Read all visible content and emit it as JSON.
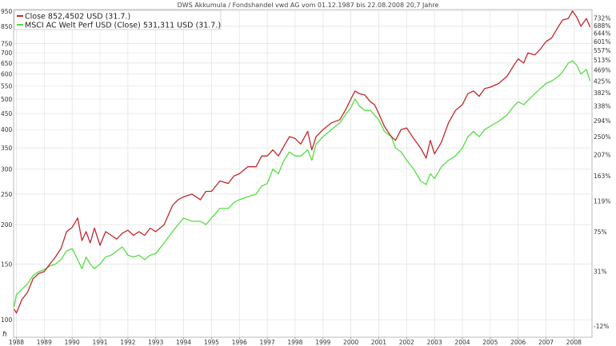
{
  "chart_data": {
    "type": "line",
    "title": "DWS Akkumula / Fondshandel vwd AG vom 01.12.1987 bis 22.08.2008 20,7 Jahre",
    "y_scale": "log",
    "xlim": [
      1987.9,
      2008.65
    ],
    "ylim": [
      88,
      960
    ],
    "x_ticks": [
      "1988",
      "1989",
      "1990",
      "1991",
      "1992",
      "1993",
      "1994",
      "1995",
      "1996",
      "1997",
      "1998",
      "1999",
      "2000",
      "2001",
      "2002",
      "2003",
      "2004",
      "2005",
      "2006",
      "2007",
      "2008"
    ],
    "y_ticks_left": [
      {
        "label": "100",
        "value": 100
      },
      {
        "label": "150",
        "value": 150
      },
      {
        "label": "200",
        "value": 200
      },
      {
        "label": "250",
        "value": 250
      },
      {
        "label": "300",
        "value": 300
      },
      {
        "label": "350",
        "value": 350
      },
      {
        "label": "400",
        "value": 400
      },
      {
        "label": "450",
        "value": 450
      },
      {
        "label": "500",
        "value": 500
      },
      {
        "label": "550",
        "value": 550
      },
      {
        "label": "600",
        "value": 600
      },
      {
        "label": "650",
        "value": 650
      },
      {
        "label": "700",
        "value": 700
      },
      {
        "label": "750",
        "value": 750
      },
      {
        "label": "850",
        "value": 850
      },
      {
        "label": "950",
        "value": 950
      }
    ],
    "y_ticks_right": [
      {
        "label": "-12%",
        "value": -12
      },
      {
        "label": "31%",
        "value": 31
      },
      {
        "label": "75%",
        "value": 75
      },
      {
        "label": "119%",
        "value": 119
      },
      {
        "label": "163%",
        "value": 163
      },
      {
        "label": "207%",
        "value": 207
      },
      {
        "label": "250%",
        "value": 250
      },
      {
        "label": "294%",
        "value": 294
      },
      {
        "label": "338%",
        "value": 338
      },
      {
        "label": "382%",
        "value": 382
      },
      {
        "label": "425%",
        "value": 425
      },
      {
        "label": "469%",
        "value": 469
      },
      {
        "label": "513%",
        "value": 513
      },
      {
        "label": "557%",
        "value": 557
      },
      {
        "label": "601%",
        "value": 601
      },
      {
        "label": "644%",
        "value": 644
      },
      {
        "label": "688%",
        "value": 688
      },
      {
        "label": "732%",
        "value": 732
      }
    ],
    "grid": true,
    "legend_position": "top-left",
    "series": [
      {
        "name": "Close 852,4502 USD (31.7.)",
        "color": "#c0282b",
        "x": [
          1987.92,
          1988.0,
          1988.2,
          1988.4,
          1988.6,
          1988.8,
          1989.0,
          1989.2,
          1989.4,
          1989.6,
          1989.8,
          1990.0,
          1990.2,
          1990.35,
          1990.5,
          1990.65,
          1990.8,
          1991.0,
          1991.2,
          1991.4,
          1991.6,
          1991.8,
          1992.0,
          1992.2,
          1992.4,
          1992.6,
          1992.8,
          1993.0,
          1993.3,
          1993.6,
          1993.8,
          1994.0,
          1994.3,
          1994.6,
          1994.8,
          1995.0,
          1995.3,
          1995.6,
          1995.8,
          1996.0,
          1996.3,
          1996.6,
          1996.8,
          1997.0,
          1997.2,
          1997.4,
          1997.6,
          1997.8,
          1998.0,
          1998.2,
          1998.45,
          1998.6,
          1998.75,
          1999.0,
          1999.3,
          1999.6,
          1999.8,
          2000.0,
          2000.15,
          2000.3,
          2000.5,
          2000.7,
          2000.85,
          2001.0,
          2001.2,
          2001.45,
          2001.6,
          2001.8,
          2002.0,
          2002.25,
          2002.5,
          2002.7,
          2002.85,
          2003.0,
          2003.25,
          2003.5,
          2003.75,
          2004.0,
          2004.2,
          2004.4,
          2004.6,
          2004.8,
          2005.0,
          2005.3,
          2005.6,
          2005.85,
          2006.0,
          2006.2,
          2006.35,
          2006.6,
          2006.8,
          2007.0,
          2007.2,
          2007.45,
          2007.6,
          2007.8,
          2007.95,
          2008.1,
          2008.25,
          2008.45,
          2008.58
        ],
        "y": [
          108,
          105,
          116,
          122,
          135,
          140,
          142,
          150,
          158,
          168,
          190,
          196,
          210,
          178,
          190,
          175,
          195,
          172,
          190,
          185,
          180,
          188,
          192,
          185,
          190,
          185,
          195,
          190,
          200,
          230,
          240,
          245,
          250,
          240,
          255,
          255,
          275,
          270,
          285,
          290,
          305,
          305,
          330,
          330,
          345,
          330,
          355,
          380,
          375,
          360,
          395,
          345,
          380,
          400,
          420,
          430,
          460,
          500,
          530,
          520,
          515,
          490,
          480,
          450,
          410,
          380,
          370,
          400,
          405,
          375,
          350,
          325,
          370,
          335,
          365,
          420,
          460,
          480,
          520,
          530,
          510,
          540,
          545,
          560,
          590,
          640,
          670,
          650,
          700,
          690,
          720,
          760,
          780,
          850,
          890,
          900,
          950,
          910,
          850,
          900,
          845
        ]
      },
      {
        "name": "MSCI AC Welt Perf USD (Close) 531,311 USD (31.7.)",
        "color": "#55dd45",
        "x": [
          1987.92,
          1988.0,
          1988.2,
          1988.4,
          1988.6,
          1988.8,
          1989.0,
          1989.2,
          1989.4,
          1989.6,
          1989.8,
          1990.0,
          1990.2,
          1990.35,
          1990.5,
          1990.65,
          1990.8,
          1991.0,
          1991.2,
          1991.4,
          1991.6,
          1991.8,
          1992.0,
          1992.2,
          1992.4,
          1992.6,
          1992.8,
          1993.0,
          1993.3,
          1993.6,
          1993.8,
          1994.0,
          1994.3,
          1994.6,
          1994.8,
          1995.0,
          1995.3,
          1995.6,
          1995.8,
          1996.0,
          1996.3,
          1996.6,
          1996.8,
          1997.0,
          1997.2,
          1997.4,
          1997.6,
          1997.8,
          1998.0,
          1998.2,
          1998.45,
          1998.6,
          1998.75,
          1999.0,
          1999.3,
          1999.6,
          1999.8,
          2000.0,
          2000.15,
          2000.3,
          2000.5,
          2000.7,
          2000.85,
          2001.0,
          2001.2,
          2001.45,
          2001.6,
          2001.8,
          2002.0,
          2002.25,
          2002.5,
          2002.7,
          2002.85,
          2003.0,
          2003.25,
          2003.5,
          2003.75,
          2004.0,
          2004.2,
          2004.4,
          2004.6,
          2004.8,
          2005.0,
          2005.3,
          2005.6,
          2005.85,
          2006.0,
          2006.2,
          2006.35,
          2006.6,
          2006.8,
          2007.0,
          2007.2,
          2007.45,
          2007.6,
          2007.8,
          2007.95,
          2008.1,
          2008.25,
          2008.45,
          2008.58
        ],
        "y": [
          110,
          120,
          125,
          130,
          138,
          142,
          144,
          148,
          150,
          155,
          165,
          168,
          155,
          145,
          158,
          150,
          145,
          150,
          158,
          160,
          165,
          170,
          160,
          158,
          160,
          155,
          160,
          162,
          175,
          190,
          200,
          210,
          205,
          205,
          200,
          210,
          225,
          225,
          235,
          240,
          245,
          250,
          265,
          270,
          300,
          290,
          320,
          340,
          330,
          330,
          345,
          320,
          360,
          380,
          400,
          420,
          445,
          470,
          500,
          475,
          460,
          460,
          445,
          430,
          395,
          380,
          350,
          340,
          320,
          300,
          275,
          268,
          290,
          280,
          305,
          320,
          330,
          350,
          380,
          395,
          380,
          400,
          410,
          425,
          445,
          475,
          490,
          480,
          495,
          520,
          540,
          560,
          570,
          590,
          610,
          650,
          660,
          640,
          600,
          620,
          570
        ]
      }
    ]
  }
}
